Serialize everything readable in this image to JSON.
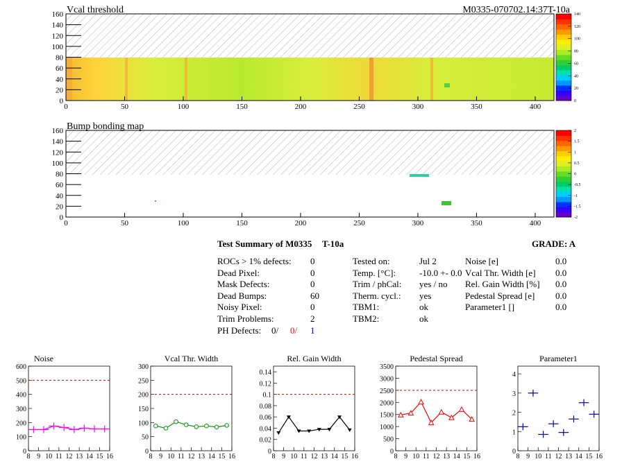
{
  "header": {
    "map1_title": "Vcal threshold",
    "module_id": "M0335-070702.14:37T-10a",
    "map2_title": "Bump bonding map"
  },
  "maps": {
    "x_ticks": [
      "0",
      "50",
      "100",
      "150",
      "200",
      "250",
      "300",
      "350",
      "400"
    ],
    "y_ticks": [
      "0",
      "20",
      "40",
      "60",
      "80",
      "100",
      "120",
      "140",
      "160"
    ],
    "palette1_labels": [
      "0",
      "20",
      "40",
      "60",
      "80",
      "100",
      "120",
      "140"
    ],
    "palette2_labels": [
      "-2",
      "-1.5",
      "-1",
      "-0.5",
      "0",
      "0.5",
      "1",
      "1.5",
      "2"
    ]
  },
  "summary": {
    "title": "Test Summary of M0335",
    "temp_tag": "T-10a",
    "grade_label": "GRADE:  A",
    "col1": [
      {
        "label": "ROCs > 1% defects:",
        "value": "0"
      },
      {
        "label": "Dead Pixel:",
        "value": "0"
      },
      {
        "label": "Mask Defects:",
        "value": "0"
      },
      {
        "label": "Dead Bumps:",
        "value": "60"
      },
      {
        "label": "Noisy Pixel:",
        "value": "0"
      },
      {
        "label": "Trim Problems:",
        "value": "2"
      }
    ],
    "ph_label": "PH Defects:",
    "ph_values": [
      "0/",
      "0/",
      "1"
    ],
    "ph_colors": [
      "#000000",
      "#ff0000",
      "#0000ff"
    ],
    "col2": [
      {
        "label": "Tested on:",
        "value": "Jul 2"
      },
      {
        "label": "Temp. [°C]:",
        "value": "-10.0 +- 0.0"
      },
      {
        "label": "Trim / phCal:",
        "value": "yes / no"
      },
      {
        "label": "Therm. cycl.:",
        "value": "yes"
      },
      {
        "label": "TBM1:",
        "value": "ok"
      },
      {
        "label": "TBM2:",
        "value": "ok"
      }
    ],
    "col3": [
      {
        "label": "Noise [e]",
        "value": "0.0"
      },
      {
        "label": "Vcal Thr. Width [e]",
        "value": "0.0"
      },
      {
        "label": "Rel. Gain Width [%]",
        "value": "0.0"
      },
      {
        "label": "Pedestal Spread [e]",
        "value": "0.0"
      },
      {
        "label": "Parameter1 []",
        "value": "0.0"
      }
    ]
  },
  "chart_data": [
    {
      "type": "heatmap",
      "title": "Vcal threshold",
      "xlim": [
        0,
        416
      ],
      "ylim": [
        0,
        160
      ],
      "filled_rows": [
        0,
        80
      ],
      "z_range": [
        0,
        140
      ],
      "description_bands": "predominantly yellow-green threshold values",
      "colors": {
        "hatch": "#9a9a9a"
      }
    },
    {
      "type": "heatmap",
      "title": "Bump bonding map",
      "xlim": [
        0,
        416
      ],
      "ylim": [
        0,
        160
      ],
      "filled_rows": [
        0,
        80
      ],
      "z_range": [
        -2,
        2
      ]
    },
    {
      "type": "line",
      "title": "Noise",
      "x": [
        8.5,
        9.5,
        10.5,
        11.5,
        12.5,
        13.5,
        14.5,
        15.5
      ],
      "values": [
        150,
        150,
        175,
        165,
        150,
        160,
        155,
        155
      ],
      "xlim": [
        8,
        16
      ],
      "ylim": [
        0,
        600
      ],
      "yticks": [
        "0",
        "100",
        "200",
        "300",
        "400",
        "500",
        "600"
      ],
      "xticks": [
        "8",
        "9",
        "10",
        "11",
        "12",
        "13",
        "14",
        "15",
        "16"
      ],
      "ref_line": 500,
      "marker": "cross",
      "color": "#ff00ff"
    },
    {
      "type": "line",
      "title": "Vcal Thr. Width",
      "x": [
        8.5,
        9.5,
        10.5,
        11.5,
        12.5,
        13.5,
        14.5,
        15.5
      ],
      "values": [
        88,
        80,
        103,
        92,
        85,
        88,
        84,
        90
      ],
      "xlim": [
        8,
        16
      ],
      "ylim": [
        0,
        300
      ],
      "yticks": [
        "0",
        "50",
        "100",
        "150",
        "200",
        "250",
        "300"
      ],
      "xticks": [
        "8",
        "9",
        "10",
        "11",
        "12",
        "13",
        "14",
        "15",
        "16"
      ],
      "ref_line": 200,
      "marker": "circle",
      "color": "#009900"
    },
    {
      "type": "line",
      "title": "Rel. Gain Width",
      "x": [
        8.5,
        9.5,
        10.5,
        11.5,
        12.5,
        13.5,
        14.5,
        15.5
      ],
      "values": [
        0.032,
        0.06,
        0.035,
        0.035,
        0.038,
        0.038,
        0.06,
        0.037
      ],
      "xlim": [
        8,
        16
      ],
      "ylim": [
        0,
        0.15
      ],
      "yticks": [
        "0",
        "0.02",
        "0.04",
        "0.06",
        "0.08",
        "0.1",
        "0.12",
        "0.14"
      ],
      "ytickvals": [
        0,
        0.02,
        0.04,
        0.06,
        0.08,
        0.1,
        0.12,
        0.14
      ],
      "xticks": [
        "8",
        "9",
        "10",
        "11",
        "12",
        "13",
        "14",
        "15",
        "16"
      ],
      "ref_line": 0.1,
      "marker": "triangle-down",
      "color": "#000000"
    },
    {
      "type": "line",
      "title": "Pedestal Spread",
      "x": [
        8.5,
        9.5,
        10.5,
        11.5,
        12.5,
        13.5,
        14.5,
        15.5
      ],
      "values": [
        1480,
        1560,
        2020,
        1160,
        1600,
        1370,
        1710,
        1300
      ],
      "xlim": [
        8,
        16
      ],
      "ylim": [
        0,
        3500
      ],
      "yticks": [
        "0",
        "500",
        "1000",
        "1500",
        "2000",
        "2500",
        "3000",
        "3500"
      ],
      "xticks": [
        "8",
        "9",
        "10",
        "11",
        "12",
        "13",
        "14",
        "15",
        "16"
      ],
      "ref_line": 2500,
      "marker": "triangle-up",
      "color": "#ff0000"
    },
    {
      "type": "scatter",
      "title": "Parameter1",
      "x": [
        8.5,
        9.5,
        10.5,
        11.5,
        12.5,
        13.5,
        14.5,
        15.5
      ],
      "values": [
        1.25,
        3.0,
        0.85,
        1.4,
        0.95,
        1.65,
        2.5,
        1.9
      ],
      "xlim": [
        8,
        16
      ],
      "ylim": [
        0,
        4.4
      ],
      "yticks": [
        "0",
        "1",
        "2",
        "3",
        "4"
      ],
      "ytickvals": [
        0,
        1,
        2,
        3,
        4
      ],
      "xticks": [
        "8",
        "9",
        "10",
        "11",
        "12",
        "13",
        "14",
        "15",
        "16"
      ],
      "marker": "cross",
      "color": "#0000aa"
    }
  ]
}
